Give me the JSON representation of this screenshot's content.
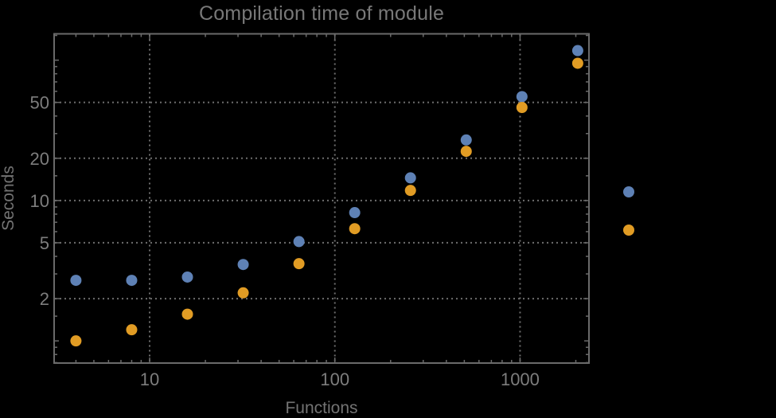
{
  "window": {
    "background": "#000000"
  },
  "chart_data": {
    "type": "scatter",
    "title": "Compilation time of module",
    "xlabel": "Functions",
    "ylabel": "Seconds",
    "x_scale": "log10",
    "y_scale": "log10",
    "xlim": [
      3.05,
      2355
    ],
    "ylim": [
      0.695,
      154
    ],
    "grid": {
      "style": "dotted",
      "x_values": [
        10,
        100,
        1000
      ],
      "y_values": [
        2,
        5,
        10,
        20,
        50
      ]
    },
    "x_ticks": {
      "labeled_values": [
        10,
        100,
        1000
      ],
      "labels": [
        "10",
        "100",
        "1000"
      ]
    },
    "y_ticks": {
      "labeled_values": [
        2,
        5,
        10,
        20,
        50
      ],
      "labels": [
        "2",
        "5",
        "10",
        "20",
        "50"
      ],
      "unlabeled_decade_values": [
        1,
        100
      ]
    },
    "x": [
      4,
      8,
      16,
      32,
      64,
      128,
      256,
      512,
      1024,
      2048
    ],
    "series": [
      {
        "name": "series-blue",
        "marker": "disk",
        "color": "#5e81b5",
        "values": [
          2.7,
          2.7,
          2.85,
          3.5,
          5.1,
          8.2,
          14.5,
          27,
          55,
          117
        ]
      },
      {
        "name": "series-orange",
        "marker": "disk",
        "color": "#e19c24",
        "values": [
          1.0,
          1.2,
          1.55,
          2.2,
          3.55,
          6.3,
          11.8,
          22.4,
          46,
          95
        ]
      }
    ],
    "legend": {
      "position": "right-outside",
      "markers_only": true
    }
  },
  "colors": {
    "background": "#000000",
    "frame": "#6a6a6a",
    "grid": "#6e6e6e",
    "tick_label": "#7d7d7d",
    "title": "#787878",
    "axis_label": "#737373"
  }
}
